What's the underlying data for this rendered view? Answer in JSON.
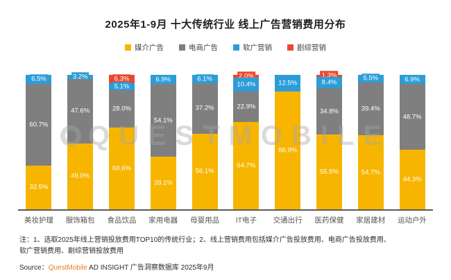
{
  "title": "2025年1-9月 十大传统行业 线上广告营销费用分布",
  "legend": [
    {
      "label": "媒介广告",
      "color": "#f7b500"
    },
    {
      "label": "电商广告",
      "color": "#7f7f7f"
    },
    {
      "label": "软广营销",
      "color": "#2c9dd9"
    },
    {
      "label": "剧综营销",
      "color": "#e8492e"
    }
  ],
  "chart_data": {
    "type": "bar",
    "stacked": true,
    "orientation": "vertical",
    "title": "2025年1-9月 十大传统行业 线上广告营销费用分布",
    "unit": "%",
    "value_suffix": "%",
    "ylim": [
      0,
      100
    ],
    "grid": false,
    "legend_position": "top",
    "categories": [
      "美妆护理",
      "服饰箱包",
      "食品饮品",
      "家用电器",
      "母婴用品",
      "IT电子",
      "交通出行",
      "医药保健",
      "家居建材",
      "运动户外"
    ],
    "series": [
      {
        "name": "媒介广告",
        "key": "media-ad",
        "color": "#f7b500",
        "values": [
          32.5,
          49.0,
          60.6,
          39.1,
          56.1,
          64.7,
          86.9,
          55.5,
          54.7,
          44.3
        ]
      },
      {
        "name": "电商广告",
        "key": "ecommerce-ad",
        "color": "#7f7f7f",
        "values": [
          60.7,
          47.6,
          28.0,
          54.1,
          37.2,
          22.9,
          0,
          34.8,
          39.4,
          48.7
        ]
      },
      {
        "name": "软广营销",
        "key": "soft-ad",
        "color": "#2c9dd9",
        "values": [
          6.5,
          3.2,
          5.1,
          6.9,
          6.1,
          10.4,
          12.5,
          8.4,
          5.5,
          6.9
        ]
      },
      {
        "name": "剧综营销",
        "key": "drama-variety-ad",
        "color": "#e8492e",
        "values": [
          0,
          0,
          6.3,
          0,
          0,
          2.0,
          0,
          1.3,
          0,
          0
        ]
      }
    ]
  },
  "watermark": "QUESTMOBILE",
  "notes": {
    "lines": [
      "注：1、选取2025年线上营销投放费用TOP10的传统行业；2、线上营销费用包括媒介广告投放费用、电商广告投放费用、",
      "软广营销费用、剧综营销投放费用"
    ]
  },
  "source": {
    "prefix": "Source：",
    "brand": "QuestMobile",
    "rest": " AD INSIGHT 广告洞察数据库 2025年9月"
  }
}
